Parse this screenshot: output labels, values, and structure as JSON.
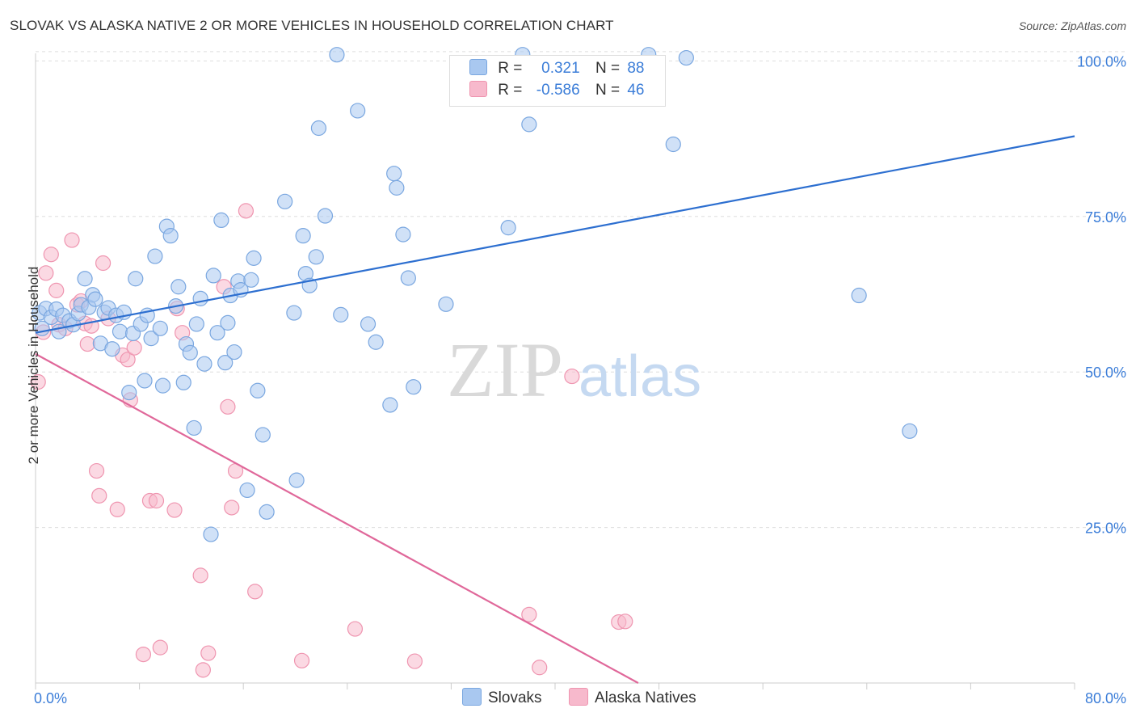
{
  "title": "SLOVAK VS ALASKA NATIVE 2 OR MORE VEHICLES IN HOUSEHOLD CORRELATION CHART",
  "source": "Source: ZipAtlas.com",
  "watermark": {
    "zip": "ZIP",
    "atlas": "atlas"
  },
  "legend": {
    "row1": {
      "r_label": "R =",
      "r_value": "0.321",
      "n_label": "N =",
      "n_value": "88"
    },
    "row2": {
      "r_label": "R =",
      "r_value": "-0.586",
      "n_label": "N =",
      "n_value": "46"
    }
  },
  "bottom_legend": {
    "series1": "Slovaks",
    "series2": "Alaska Natives"
  },
  "colors": {
    "blue_fill": "#a9c8f0",
    "blue_stroke": "#7aa7e0",
    "blue_line": "#2d6fd0",
    "pink_fill": "#f7b9cc",
    "pink_stroke": "#ef95b0",
    "pink_line": "#e0689a",
    "tick_label": "#3b7dd8",
    "grid": "#dddddd"
  },
  "chart_data": {
    "type": "scatter",
    "title": "SLOVAK VS ALASKA NATIVE 2 OR MORE VEHICLES IN HOUSEHOLD CORRELATION CHART",
    "xlabel": "",
    "ylabel": "2 or more Vehicles in Household",
    "xlim": [
      0,
      80
    ],
    "ylim": [
      0,
      102
    ],
    "x_tick_labels": [
      "0.0%",
      "80.0%"
    ],
    "y_ticks": [
      25,
      50,
      75,
      100
    ],
    "y_tick_labels": [
      "25.0%",
      "50.0%",
      "75.0%",
      "100.0%"
    ],
    "grid": true,
    "legend_position": "top-center",
    "series": [
      {
        "name": "Slovaks",
        "r": 0.321,
        "n": 88,
        "trend": {
          "x": [
            0,
            80
          ],
          "y": [
            56.3,
            87.9
          ]
        },
        "points": [
          [
            0.3,
            59.5
          ],
          [
            0.8,
            60.2
          ],
          [
            1.2,
            58.8
          ],
          [
            1.6,
            60.1
          ],
          [
            1.8,
            56.5
          ],
          [
            2.1,
            59.1
          ],
          [
            2.6,
            58.2
          ],
          [
            2.9,
            57.6
          ],
          [
            3.3,
            59.4
          ],
          [
            3.5,
            60.8
          ],
          [
            3.8,
            65.0
          ],
          [
            4.1,
            60.4
          ],
          [
            4.4,
            62.4
          ],
          [
            4.6,
            61.7
          ],
          [
            5.0,
            54.6
          ],
          [
            5.3,
            59.6
          ],
          [
            5.6,
            60.3
          ],
          [
            5.9,
            53.7
          ],
          [
            6.2,
            59.1
          ],
          [
            6.5,
            56.5
          ],
          [
            6.8,
            59.6
          ],
          [
            7.2,
            46.7
          ],
          [
            7.5,
            56.2
          ],
          [
            7.7,
            65.0
          ],
          [
            8.1,
            57.7
          ],
          [
            8.4,
            48.6
          ],
          [
            8.6,
            59.1
          ],
          [
            8.9,
            55.4
          ],
          [
            9.2,
            68.6
          ],
          [
            9.6,
            57.0
          ],
          [
            9.8,
            47.8
          ],
          [
            10.1,
            73.4
          ],
          [
            10.4,
            71.9
          ],
          [
            10.8,
            60.6
          ],
          [
            11.0,
            63.7
          ],
          [
            11.4,
            48.3
          ],
          [
            11.6,
            54.5
          ],
          [
            11.9,
            53.1
          ],
          [
            12.2,
            41.0
          ],
          [
            12.4,
            57.7
          ],
          [
            12.7,
            61.8
          ],
          [
            13.0,
            51.3
          ],
          [
            13.5,
            23.9
          ],
          [
            13.7,
            65.5
          ],
          [
            14.0,
            56.3
          ],
          [
            14.3,
            74.4
          ],
          [
            14.6,
            51.5
          ],
          [
            14.8,
            57.9
          ],
          [
            15.0,
            62.3
          ],
          [
            15.3,
            53.2
          ],
          [
            15.6,
            64.6
          ],
          [
            15.8,
            63.2
          ],
          [
            16.3,
            31.0
          ],
          [
            16.6,
            64.8
          ],
          [
            16.8,
            68.3
          ],
          [
            17.1,
            47.0
          ],
          [
            17.5,
            39.9
          ],
          [
            17.8,
            27.5
          ],
          [
            19.2,
            77.4
          ],
          [
            19.9,
            59.5
          ],
          [
            20.1,
            32.6
          ],
          [
            20.6,
            71.9
          ],
          [
            20.8,
            65.8
          ],
          [
            21.1,
            63.9
          ],
          [
            21.6,
            68.5
          ],
          [
            21.8,
            89.2
          ],
          [
            22.3,
            75.1
          ],
          [
            23.2,
            101.0
          ],
          [
            23.5,
            59.2
          ],
          [
            24.8,
            92.0
          ],
          [
            25.6,
            57.7
          ],
          [
            26.2,
            54.8
          ],
          [
            27.3,
            44.7
          ],
          [
            27.6,
            81.9
          ],
          [
            27.8,
            79.6
          ],
          [
            28.3,
            72.1
          ],
          [
            28.7,
            65.1
          ],
          [
            29.1,
            47.6
          ],
          [
            31.6,
            60.9
          ],
          [
            36.4,
            73.2
          ],
          [
            37.5,
            101.0
          ],
          [
            38.0,
            89.8
          ],
          [
            47.2,
            101.0
          ],
          [
            49.1,
            86.6
          ],
          [
            50.1,
            100.5
          ],
          [
            63.4,
            62.3
          ],
          [
            67.3,
            40.5
          ],
          [
            0.5,
            57.0
          ]
        ]
      },
      {
        "name": "Alaska Natives",
        "r": -0.586,
        "n": 46,
        "trend": {
          "x": [
            0,
            46.4
          ],
          "y": [
            52.9,
            0
          ]
        },
        "points": [
          [
            0.2,
            48.4
          ],
          [
            0.8,
            65.9
          ],
          [
            1.2,
            68.9
          ],
          [
            1.6,
            63.1
          ],
          [
            1.8,
            57.6
          ],
          [
            2.3,
            57.0
          ],
          [
            2.8,
            71.2
          ],
          [
            3.2,
            60.8
          ],
          [
            3.5,
            61.4
          ],
          [
            3.8,
            57.8
          ],
          [
            4.0,
            54.5
          ],
          [
            4.3,
            57.4
          ],
          [
            4.7,
            34.1
          ],
          [
            4.9,
            30.1
          ],
          [
            5.2,
            67.5
          ],
          [
            5.6,
            58.6
          ],
          [
            6.3,
            27.9
          ],
          [
            6.7,
            52.7
          ],
          [
            7.1,
            52.0
          ],
          [
            7.3,
            45.5
          ],
          [
            7.6,
            53.9
          ],
          [
            8.3,
            4.6
          ],
          [
            8.8,
            29.3
          ],
          [
            9.3,
            29.3
          ],
          [
            9.6,
            5.7
          ],
          [
            10.7,
            27.8
          ],
          [
            10.9,
            60.2
          ],
          [
            11.3,
            56.3
          ],
          [
            12.7,
            17.3
          ],
          [
            12.9,
            2.1
          ],
          [
            13.3,
            4.8
          ],
          [
            14.5,
            63.7
          ],
          [
            14.8,
            44.4
          ],
          [
            15.1,
            28.2
          ],
          [
            15.4,
            34.1
          ],
          [
            16.2,
            75.9
          ],
          [
            16.9,
            14.7
          ],
          [
            20.5,
            3.6
          ],
          [
            24.6,
            8.7
          ],
          [
            29.2,
            3.5
          ],
          [
            38.0,
            11.0
          ],
          [
            38.8,
            2.5
          ],
          [
            41.3,
            49.3
          ],
          [
            44.9,
            9.8
          ],
          [
            45.4,
            9.9
          ],
          [
            0.6,
            56.4
          ]
        ]
      }
    ]
  }
}
